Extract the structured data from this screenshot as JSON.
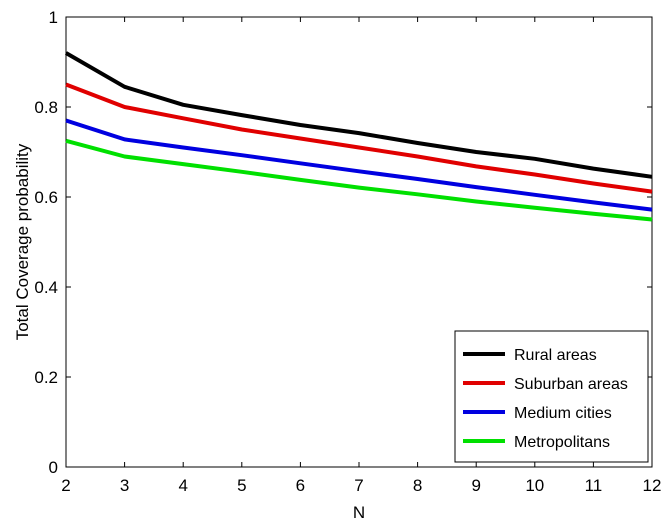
{
  "chart_data": {
    "type": "line",
    "title": "",
    "xlabel": "N",
    "ylabel": "Total Coverage probability",
    "xlim": [
      2,
      12
    ],
    "ylim": [
      0,
      1
    ],
    "x_ticks": [
      2,
      3,
      4,
      5,
      6,
      7,
      8,
      9,
      10,
      11,
      12
    ],
    "y_ticks": [
      0,
      0.2,
      0.4,
      0.6,
      0.8,
      1
    ],
    "y_tick_labels": [
      "0",
      "0.2",
      "0.4",
      "0.6",
      "0.8",
      "1"
    ],
    "grid": false,
    "legend_position": "bottom-right",
    "x": [
      2,
      3,
      4,
      5,
      6,
      7,
      8,
      9,
      10,
      11,
      12
    ],
    "series": [
      {
        "name": "Rural areas",
        "color": "#000000",
        "values": [
          0.92,
          0.845,
          0.805,
          0.782,
          0.76,
          0.742,
          0.72,
          0.7,
          0.685,
          0.663,
          0.645
        ]
      },
      {
        "name": "Suburban areas",
        "color": "#e00000",
        "values": [
          0.85,
          0.8,
          0.775,
          0.75,
          0.73,
          0.71,
          0.69,
          0.668,
          0.65,
          0.63,
          0.612
        ]
      },
      {
        "name": "Medium cities",
        "color": "#0000e0",
        "values": [
          0.77,
          0.728,
          0.71,
          0.693,
          0.675,
          0.657,
          0.64,
          0.622,
          0.605,
          0.588,
          0.572
        ]
      },
      {
        "name": "Metropolitans",
        "color": "#00e000",
        "values": [
          0.725,
          0.69,
          0.673,
          0.656,
          0.638,
          0.621,
          0.606,
          0.59,
          0.576,
          0.563,
          0.55
        ]
      }
    ]
  }
}
